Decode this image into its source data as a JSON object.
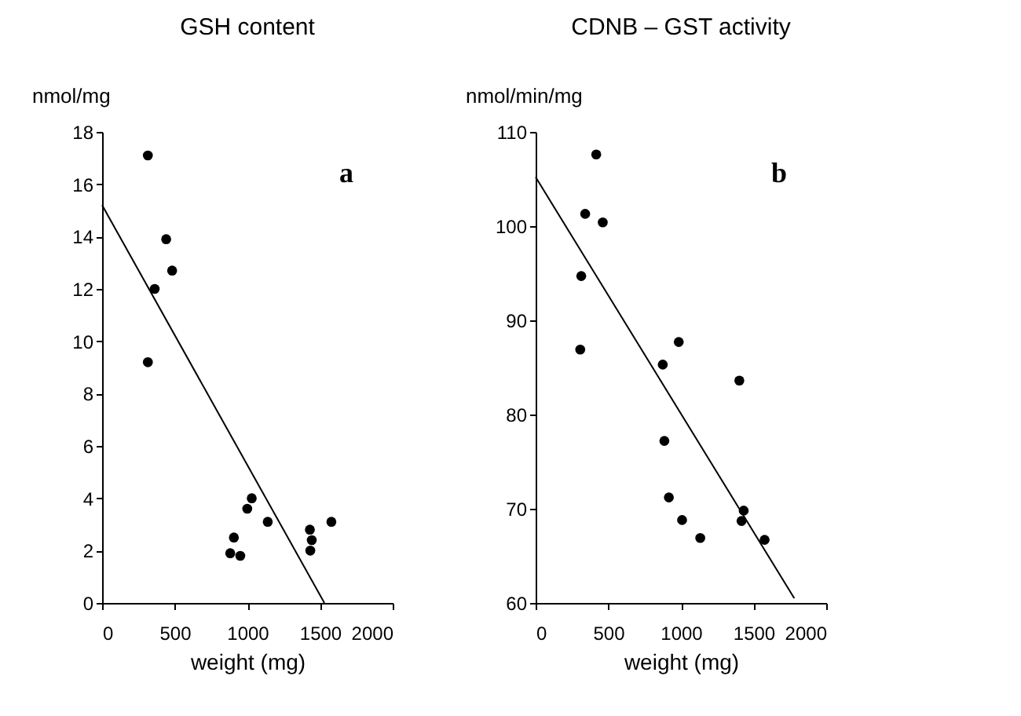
{
  "chart_data": [
    {
      "type": "scatter",
      "title": "GSH content",
      "xlabel": "weight (mg)",
      "ylabel": "nmol/mg",
      "annotations": [
        "a"
      ],
      "xlim": [
        0,
        2000
      ],
      "xticks": [
        0,
        500,
        1000,
        1500,
        2000
      ],
      "ylim": [
        0,
        18
      ],
      "yticks": [
        0,
        2,
        4,
        6,
        8,
        10,
        12,
        14,
        16,
        18
      ],
      "series": [
        {
          "color": "#000000",
          "marker": "circle",
          "x": [
            315,
            441,
            482,
            362,
            315,
            907,
            882,
            951,
            999,
            1030,
            1140,
            1430,
            1443,
            1433,
            1578
          ],
          "values": [
            17.1,
            13.9,
            12.7,
            12.0,
            9.2,
            2.5,
            1.9,
            1.8,
            3.6,
            4.0,
            3.1,
            2.8,
            2.4,
            2.0,
            3.1
          ]
        },
        {
          "type": "line",
          "color": "#000000",
          "x": [
            0,
            1530
          ],
          "values": [
            15.2,
            0
          ]
        }
      ]
    },
    {
      "type": "scatter",
      "title": "CDNB – GST activity",
      "xlabel": "weight (mg)",
      "ylabel": "nmol/min/mg",
      "annotations": [
        "b"
      ],
      "xlim": [
        0,
        2000
      ],
      "xticks": [
        0,
        500,
        1000,
        1500,
        2000
      ],
      "ylim": [
        60,
        110
      ],
      "yticks": [
        60,
        70,
        80,
        90,
        100,
        110
      ],
      "series": [
        {
          "color": "#000000",
          "marker": "circle",
          "x": [
            417,
            341,
            462,
            314,
            307,
            985,
            875,
            1402,
            886,
            917,
            1008,
            1133,
            1432,
            1417,
            1576
          ],
          "values": [
            107.6,
            101.3,
            100.4,
            94.7,
            86.9,
            87.7,
            85.3,
            83.6,
            77.2,
            71.2,
            68.8,
            66.9,
            69.8,
            68.7,
            66.7
          ]
        },
        {
          "type": "line",
          "color": "#000000",
          "x": [
            0,
            1780
          ],
          "values": [
            105.2,
            60.5
          ]
        }
      ]
    }
  ]
}
